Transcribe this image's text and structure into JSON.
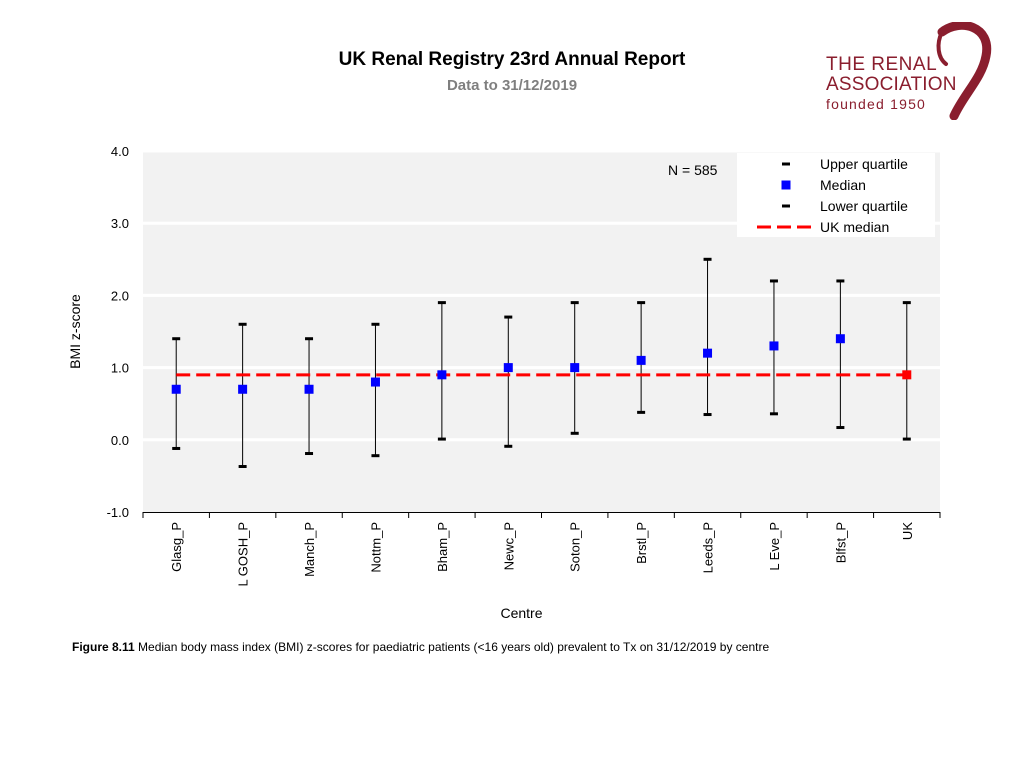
{
  "header": {
    "title": "UK Renal Registry 23rd Annual Report",
    "subtitle": "Data to 31/12/2019"
  },
  "logo": {
    "line1": "THE RENAL",
    "line2": "ASSOCIATION",
    "line3": "founded 1950",
    "color": "#8a1e2e"
  },
  "chart_data": {
    "type": "scatter",
    "title": "",
    "xlabel": "Centre",
    "ylabel": "BMI z-score",
    "ylim": [
      -1.0,
      4.0
    ],
    "yticks": [
      "4.0",
      "3.0",
      "2.0",
      "1.0",
      "0.0",
      "-1.0"
    ],
    "categories": [
      "Glasg_P",
      "L GOSH_P",
      "Manch_P",
      "Nottm_P",
      "Bham_P",
      "Newc_P",
      "Soton_P",
      "Brstl_P",
      "Leeds_P",
      "L Eve_P",
      "Blfst_P",
      "UK"
    ],
    "series": [
      {
        "name": "Upper quartile",
        "values": [
          1.4,
          1.6,
          1.4,
          1.6,
          1.9,
          1.7,
          1.9,
          1.9,
          2.5,
          2.2,
          2.2,
          1.9
        ]
      },
      {
        "name": "Median",
        "values": [
          0.7,
          0.7,
          0.7,
          0.8,
          0.9,
          1.0,
          1.0,
          1.1,
          1.2,
          1.3,
          1.4,
          0.9
        ]
      },
      {
        "name": "Lower quartile",
        "values": [
          -0.12,
          -0.37,
          -0.19,
          -0.22,
          0.01,
          -0.09,
          0.09,
          0.38,
          0.35,
          0.36,
          0.17,
          0.01
        ]
      }
    ],
    "reference_line": {
      "name": "UK median",
      "value": 0.9
    },
    "annotation": "N = 585",
    "grid": true,
    "legend_position": "top-right",
    "colors": {
      "median": "#0000ff",
      "uk_median_marker": "#ff0000",
      "reference_line": "#ff0000",
      "whisker": "#000000",
      "plot_background": "#f2f2f2",
      "gridline": "#ffffff"
    }
  },
  "caption": {
    "label": "Figure 8.11",
    "text": " Median body mass index (BMI) z-scores for paediatric patients (<16 years old) prevalent to Tx on 31/12/2019  by centre"
  }
}
